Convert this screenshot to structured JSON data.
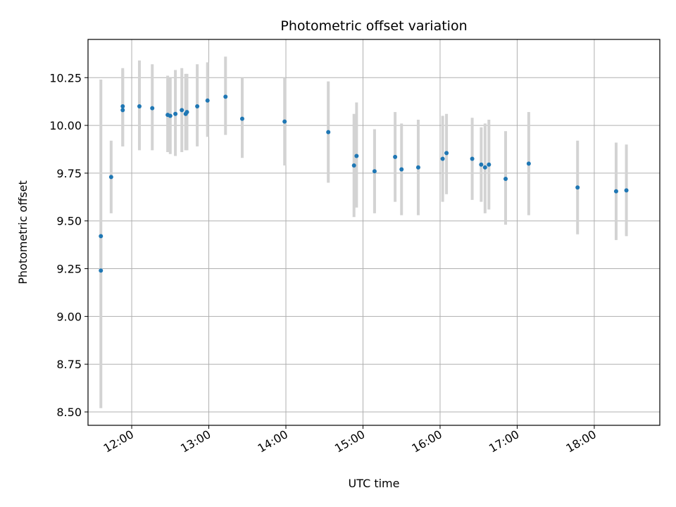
{
  "chart_data": {
    "type": "scatter",
    "title": "Photometric offset variation",
    "xlabel": "UTC time",
    "ylabel": "Photometric offset",
    "grid": true,
    "legend": "none",
    "xlim": [
      "11:26",
      "18:51"
    ],
    "ylim": [
      8.43,
      10.45
    ],
    "x_ticks": [
      "12:00",
      "13:00",
      "14:00",
      "15:00",
      "16:00",
      "17:00",
      "18:00"
    ],
    "y_ticks": [
      8.5,
      8.75,
      9.0,
      9.25,
      9.5,
      9.75,
      10.0,
      10.25
    ],
    "y_tick_labels": [
      "8.50",
      "8.75",
      "9.00",
      "9.25",
      "9.50",
      "9.75",
      "10.00",
      "10.25"
    ],
    "colors": {
      "point": "#1f77b4",
      "errorbar": "#d3d3d3",
      "grid": "#b0b0b0"
    },
    "points": [
      {
        "t": "11:36",
        "y": 9.42,
        "low": 9.24,
        "high": 10.24
      },
      {
        "t": "11:36",
        "y": 9.24,
        "low": 8.52,
        "high": 9.42
      },
      {
        "t": "11:44",
        "y": 9.73,
        "low": 9.54,
        "high": 9.92
      },
      {
        "t": "11:53",
        "y": 10.1,
        "low": 9.89,
        "high": 10.3
      },
      {
        "t": "11:53",
        "y": 10.08,
        "low": 9.89,
        "high": 10.29
      },
      {
        "t": "12:06",
        "y": 10.1,
        "low": 9.87,
        "high": 10.34
      },
      {
        "t": "12:16",
        "y": 10.09,
        "low": 9.87,
        "high": 10.32
      },
      {
        "t": "12:28",
        "y": 10.055,
        "low": 9.86,
        "high": 10.26
      },
      {
        "t": "12:30",
        "y": 10.05,
        "low": 9.85,
        "high": 10.25
      },
      {
        "t": "12:34",
        "y": 10.06,
        "low": 9.84,
        "high": 10.29
      },
      {
        "t": "12:39",
        "y": 10.08,
        "low": 9.86,
        "high": 10.3
      },
      {
        "t": "12:42",
        "y": 10.06,
        "low": 9.87,
        "high": 10.27
      },
      {
        "t": "12:43",
        "y": 10.07,
        "low": 9.87,
        "high": 10.27
      },
      {
        "t": "12:51",
        "y": 10.1,
        "low": 9.89,
        "high": 10.32
      },
      {
        "t": "12:59",
        "y": 10.13,
        "low": 9.94,
        "high": 10.33
      },
      {
        "t": "13:13",
        "y": 10.15,
        "low": 9.95,
        "high": 10.36
      },
      {
        "t": "13:26",
        "y": 10.035,
        "low": 9.83,
        "high": 10.25
      },
      {
        "t": "13:59",
        "y": 10.02,
        "low": 9.79,
        "high": 10.25
      },
      {
        "t": "14:33",
        "y": 9.965,
        "low": 9.7,
        "high": 10.23
      },
      {
        "t": "14:53",
        "y": 9.79,
        "low": 9.52,
        "high": 10.06
      },
      {
        "t": "14:55",
        "y": 9.84,
        "low": 9.57,
        "high": 10.12
      },
      {
        "t": "15:09",
        "y": 9.76,
        "low": 9.54,
        "high": 9.98
      },
      {
        "t": "15:25",
        "y": 9.835,
        "low": 9.6,
        "high": 10.07
      },
      {
        "t": "15:30",
        "y": 9.77,
        "low": 9.53,
        "high": 10.01
      },
      {
        "t": "15:43",
        "y": 9.78,
        "low": 9.53,
        "high": 10.03
      },
      {
        "t": "16:02",
        "y": 9.825,
        "low": 9.6,
        "high": 10.05
      },
      {
        "t": "16:05",
        "y": 9.855,
        "low": 9.64,
        "high": 10.06
      },
      {
        "t": "16:25",
        "y": 9.825,
        "low": 9.61,
        "high": 10.04
      },
      {
        "t": "16:32",
        "y": 9.795,
        "low": 9.6,
        "high": 9.99
      },
      {
        "t": "16:35",
        "y": 9.78,
        "low": 9.54,
        "high": 10.01
      },
      {
        "t": "16:38",
        "y": 9.795,
        "low": 9.56,
        "high": 10.03
      },
      {
        "t": "16:51",
        "y": 9.72,
        "low": 9.48,
        "high": 9.97
      },
      {
        "t": "17:09",
        "y": 9.8,
        "low": 9.53,
        "high": 10.07
      },
      {
        "t": "17:47",
        "y": 9.675,
        "low": 9.43,
        "high": 9.92
      },
      {
        "t": "18:17",
        "y": 9.655,
        "low": 9.4,
        "high": 9.91
      },
      {
        "t": "18:25",
        "y": 9.66,
        "low": 9.42,
        "high": 9.9
      }
    ]
  }
}
